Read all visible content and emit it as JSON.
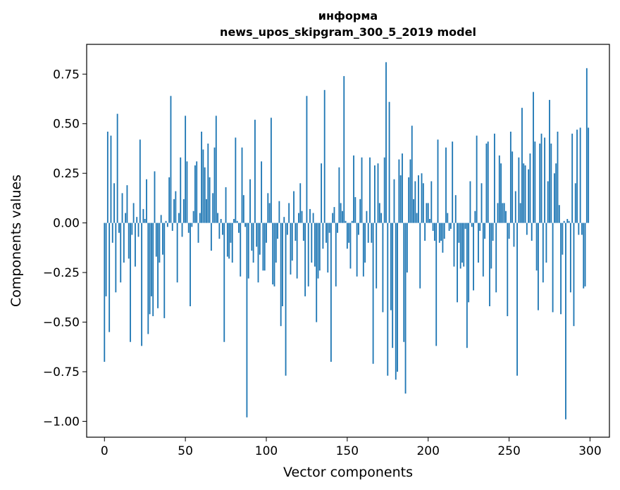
{
  "chart_data": {
    "type": "bar",
    "title_line1": "информа",
    "title_line2": "news_upos_skipgram_300_5_2019 model",
    "xlabel": "Vector components",
    "ylabel": "Components values",
    "xlim": [
      -11,
      312
    ],
    "ylim": [
      -1.08,
      0.9
    ],
    "xticks": [
      0,
      50,
      100,
      150,
      200,
      250,
      300
    ],
    "xtick_labels": [
      "0",
      "50",
      "100",
      "150",
      "200",
      "250",
      "300"
    ],
    "yticks": [
      -1.0,
      -0.75,
      -0.5,
      -0.25,
      0.0,
      0.25,
      0.5,
      0.75
    ],
    "ytick_labels": [
      "−1.00",
      "−0.75",
      "−0.50",
      "−0.25",
      "0.00",
      "0.25",
      "0.50",
      "0.75"
    ],
    "grid": false,
    "color": "#1f77b4",
    "x": [
      0,
      1,
      2,
      3,
      4,
      5,
      6,
      7,
      8,
      9,
      10,
      11,
      12,
      13,
      14,
      15,
      16,
      17,
      18,
      19,
      20,
      21,
      22,
      23,
      24,
      25,
      26,
      27,
      28,
      29,
      30,
      31,
      32,
      33,
      34,
      35,
      36,
      37,
      38,
      39,
      40,
      41,
      42,
      43,
      44,
      45,
      46,
      47,
      48,
      49,
      50,
      51,
      52,
      53,
      54,
      55,
      56,
      57,
      58,
      59,
      60,
      61,
      62,
      63,
      64,
      65,
      66,
      67,
      68,
      69,
      70,
      71,
      72,
      73,
      74,
      75,
      76,
      77,
      78,
      79,
      80,
      81,
      82,
      83,
      84,
      85,
      86,
      87,
      88,
      89,
      90,
      91,
      92,
      93,
      94,
      95,
      96,
      97,
      98,
      99,
      100,
      101,
      102,
      103,
      104,
      105,
      106,
      107,
      108,
      109,
      110,
      111,
      112,
      113,
      114,
      115,
      116,
      117,
      118,
      119,
      120,
      121,
      122,
      123,
      124,
      125,
      126,
      127,
      128,
      129,
      130,
      131,
      132,
      133,
      134,
      135,
      136,
      137,
      138,
      139,
      140,
      141,
      142,
      143,
      144,
      145,
      146,
      147,
      148,
      149,
      150,
      151,
      152,
      153,
      154,
      155,
      156,
      157,
      158,
      159,
      160,
      161,
      162,
      163,
      164,
      165,
      166,
      167,
      168,
      169,
      170,
      171,
      172,
      173,
      174,
      175,
      176,
      177,
      178,
      179,
      180,
      181,
      182,
      183,
      184,
      185,
      186,
      187,
      188,
      189,
      190,
      191,
      192,
      193,
      194,
      195,
      196,
      197,
      198,
      199,
      200,
      201,
      202,
      203,
      204,
      205,
      206,
      207,
      208,
      209,
      210,
      211,
      212,
      213,
      214,
      215,
      216,
      217,
      218,
      219,
      220,
      221,
      222,
      223,
      224,
      225,
      226,
      227,
      228,
      229,
      230,
      231,
      232,
      233,
      234,
      235,
      236,
      237,
      238,
      239,
      240,
      241,
      242,
      243,
      244,
      245,
      246,
      247,
      248,
      249,
      250,
      251,
      252,
      253,
      254,
      255,
      256,
      257,
      258,
      259,
      260,
      261,
      262,
      263,
      264,
      265,
      266,
      267,
      268,
      269,
      270,
      271,
      272,
      273,
      274,
      275,
      276,
      277,
      278,
      279,
      280,
      281,
      282,
      283,
      284,
      285,
      286,
      287,
      288,
      289,
      290,
      291,
      292,
      293,
      294,
      295,
      296,
      297,
      298,
      299
    ],
    "values": [
      -0.7,
      -0.37,
      0.46,
      -0.55,
      0.44,
      -0.1,
      0.2,
      -0.35,
      0.55,
      -0.05,
      -0.3,
      0.15,
      -0.2,
      0.05,
      0.19,
      -0.18,
      -0.6,
      -0.06,
      0.1,
      -0.22,
      0.03,
      -0.07,
      0.42,
      -0.62,
      0.07,
      0.02,
      0.22,
      -0.56,
      -0.46,
      -0.37,
      -0.47,
      0.26,
      -0.17,
      -0.43,
      -0.2,
      0.04,
      -0.16,
      -0.48,
      0.01,
      -0.02,
      0.23,
      0.64,
      -0.04,
      0.12,
      0.16,
      -0.3,
      0.05,
      0.33,
      -0.07,
      0.12,
      0.54,
      0.31,
      -0.05,
      -0.42,
      -0.02,
      0.06,
      0.29,
      0.31,
      -0.1,
      0.05,
      0.46,
      0.37,
      0.28,
      0.12,
      0.4,
      0.23,
      -0.14,
      0.15,
      0.38,
      0.54,
      0.05,
      -0.08,
      0.02,
      -0.06,
      -0.6,
      0.18,
      -0.17,
      -0.18,
      -0.1,
      -0.2,
      0.02,
      0.43,
      0.01,
      -0.05,
      -0.27,
      0.38,
      0.14,
      -0.02,
      -0.98,
      -0.28,
      0.22,
      -0.14,
      -0.2,
      0.52,
      -0.12,
      -0.3,
      -0.16,
      0.31,
      -0.24,
      -0.24,
      -0.1,
      0.15,
      0.1,
      0.53,
      -0.31,
      -0.32,
      -0.2,
      -0.08,
      0.11,
      -0.52,
      -0.42,
      0.03,
      -0.77,
      -0.06,
      0.1,
      -0.26,
      -0.19,
      0.16,
      -0.09,
      -0.28,
      0.05,
      0.2,
      0.06,
      -0.09,
      -0.37,
      0.64,
      -0.32,
      0.07,
      -0.2,
      0.05,
      -0.22,
      -0.5,
      -0.28,
      -0.24,
      0.3,
      -0.13,
      0.67,
      -0.1,
      -0.25,
      -0.05,
      -0.7,
      0.05,
      0.08,
      -0.32,
      -0.05,
      0.28,
      0.1,
      0.06,
      0.74,
      0.01,
      -0.13,
      -0.1,
      -0.23,
      0.01,
      0.34,
      0.13,
      -0.27,
      -0.06,
      0.12,
      0.33,
      -0.27,
      -0.2,
      0.06,
      -0.1,
      0.33,
      -0.1,
      -0.71,
      0.29,
      -0.33,
      0.3,
      0.1,
      0.05,
      -0.45,
      0.33,
      0.81,
      -0.77,
      0.61,
      -0.44,
      -0.63,
      0.22,
      -0.79,
      -0.75,
      0.32,
      0.24,
      0.35,
      -0.6,
      -0.86,
      -0.25,
      0.23,
      0.32,
      0.49,
      0.12,
      0.21,
      0.05,
      0.24,
      -0.33,
      0.25,
      0.2,
      -0.09,
      0.1,
      0.1,
      0.02,
      0.21,
      -0.04,
      -0.09,
      -0.62,
      0.42,
      -0.1,
      -0.09,
      -0.15,
      -0.08,
      0.38,
      0.05,
      -0.04,
      -0.03,
      0.41,
      -0.22,
      0.14,
      -0.4,
      -0.1,
      -0.23,
      -0.2,
      -0.22,
      -0.03,
      -0.63,
      -0.4,
      0.21,
      -0.02,
      -0.34,
      0.06,
      0.44,
      -0.2,
      -0.04,
      0.2,
      -0.27,
      -0.08,
      0.4,
      0.41,
      -0.42,
      -0.23,
      -0.09,
      0.45,
      -0.35,
      0.1,
      0.34,
      0.3,
      0.1,
      0.1,
      0.06,
      -0.47,
      -0.08,
      0.46,
      0.36,
      -0.12,
      0.16,
      -0.77,
      0.33,
      0.1,
      0.58,
      0.3,
      0.29,
      -0.06,
      0.27,
      0.35,
      -0.09,
      0.66,
      0.41,
      -0.24,
      -0.44,
      0.4,
      0.45,
      -0.3,
      0.43,
      -0.2,
      0.21,
      0.62,
      0.4,
      -0.45,
      0.25,
      0.3,
      0.46,
      0.09,
      -0.46,
      -0.16,
      0.01,
      -0.99,
      0.02,
      0.01,
      -0.35,
      0.45,
      -0.52,
      0.2,
      0.47,
      -0.06,
      0.48,
      -0.06,
      -0.33,
      -0.32,
      0.78,
      0.48
    ]
  }
}
